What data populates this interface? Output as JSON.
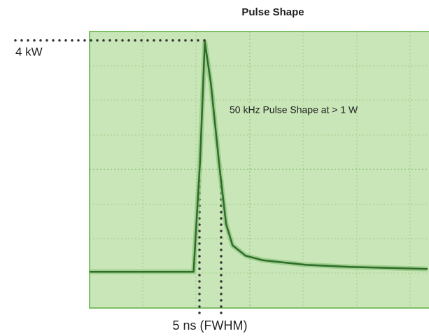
{
  "chart_data": {
    "type": "line",
    "title": "Pulse Shape",
    "annotations": [
      "4 kW",
      "50 kHz Pulse Shape at > 1 W",
      "5 ns (FWHM)"
    ],
    "x": [
      0,
      24,
      25.5,
      26.6,
      28,
      30,
      31.5,
      33,
      36,
      40,
      50,
      60,
      78
    ],
    "values": [
      0,
      0,
      1.93,
      4.0,
      3.27,
      1.8,
      0.83,
      0.46,
      0.28,
      0.2,
      0.12,
      0.085,
      0.05
    ],
    "color": "#2f6b2a",
    "xlim": [
      0,
      78
    ],
    "ylim": [
      -0.63,
      4.18
    ]
  }
}
